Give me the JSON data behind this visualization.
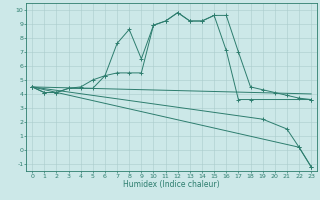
{
  "xlabel": "Humidex (Indice chaleur)",
  "bg_color": "#cce8e8",
  "line_color": "#2d7d6e",
  "grid_color": "#aacccc",
  "xlim": [
    -0.5,
    23.5
  ],
  "ylim": [
    -1.5,
    10.5
  ],
  "yticks": [
    -1,
    0,
    1,
    2,
    3,
    4,
    5,
    6,
    7,
    8,
    9,
    10
  ],
  "xticks": [
    0,
    1,
    2,
    3,
    4,
    5,
    6,
    7,
    8,
    9,
    10,
    11,
    12,
    13,
    14,
    15,
    16,
    17,
    18,
    19,
    20,
    21,
    22,
    23
  ],
  "line1_x": [
    0,
    1,
    2,
    3,
    4,
    5,
    6,
    7,
    8,
    9,
    10,
    11,
    12,
    13,
    14,
    15,
    16,
    17,
    18,
    23
  ],
  "line1_y": [
    4.5,
    4.1,
    4.1,
    4.4,
    4.4,
    4.4,
    5.3,
    7.6,
    8.6,
    6.5,
    8.9,
    9.2,
    9.8,
    9.2,
    9.2,
    9.6,
    7.1,
    3.6,
    3.6,
    3.6
  ],
  "line2_x": [
    0,
    1,
    2,
    3,
    4,
    5,
    6,
    7,
    8,
    9,
    10,
    11,
    12,
    13,
    14,
    15,
    16,
    17,
    18,
    19,
    20,
    21,
    22,
    23
  ],
  "line2_y": [
    4.5,
    4.1,
    4.1,
    4.4,
    4.5,
    5.0,
    5.3,
    5.5,
    5.5,
    5.5,
    8.9,
    9.2,
    9.8,
    9.2,
    9.2,
    9.6,
    9.6,
    7.0,
    4.5,
    4.3,
    4.1,
    3.9,
    3.7,
    3.6
  ],
  "line3_x": [
    0,
    23
  ],
  "line3_y": [
    4.5,
    4.0
  ],
  "line4_x": [
    0,
    19,
    21,
    22,
    23
  ],
  "line4_y": [
    4.5,
    2.2,
    1.5,
    0.2,
    -1.2
  ],
  "line5_x": [
    0,
    22,
    23
  ],
  "line5_y": [
    4.5,
    0.2,
    -1.2
  ]
}
